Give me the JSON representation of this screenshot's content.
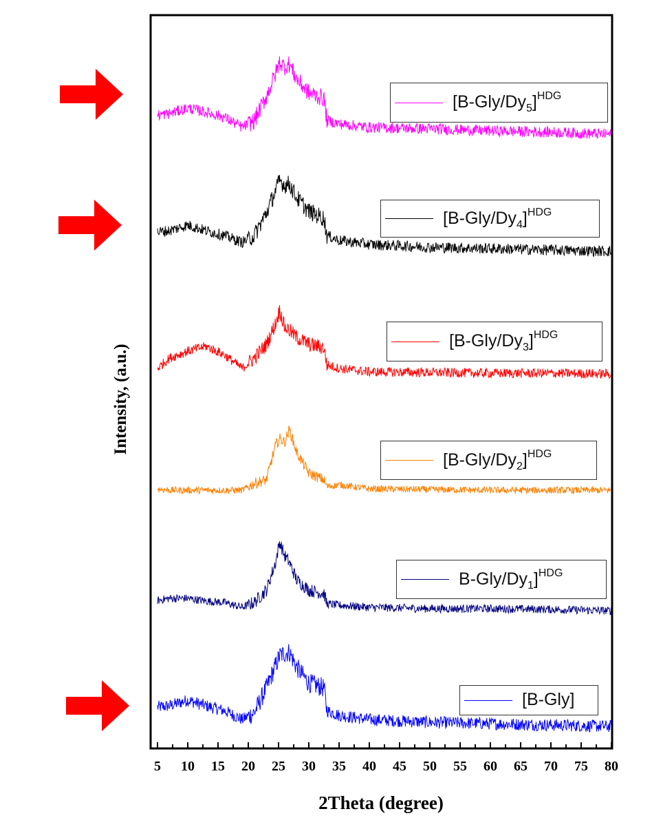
{
  "chart_data": {
    "type": "line",
    "title": "",
    "xlabel": "2Theta (degree)",
    "ylabel": "Intensity, (a.u.)",
    "xlim": [
      5,
      80
    ],
    "ylim": [
      0,
      1065
    ],
    "xticks": [
      "5",
      "10",
      "15",
      "20",
      "25",
      "30",
      "35",
      "40",
      "45",
      "50",
      "55",
      "60",
      "65",
      "70",
      "75",
      "80"
    ],
    "grid": false,
    "legend_placement": "right of each trace",
    "x": [
      5,
      7,
      10,
      13,
      16,
      19,
      21,
      23,
      24.5,
      25.2,
      26,
      26.8,
      28,
      30,
      32.5,
      33,
      35,
      40,
      50,
      60,
      70,
      80
    ],
    "series": [
      {
        "name": "[B-Gly]",
        "legend": {
          "prefix": "[B-Gly]",
          "sub": "",
          "suffix": "",
          "sup": ""
        },
        "color": "#0000ff",
        "offset": 0,
        "noise": 9,
        "values": [
          60,
          62,
          70,
          62,
          55,
          42,
          52,
          88,
          120,
          135,
          138,
          140,
          118,
          95,
          88,
          55,
          48,
          42,
          38,
          36,
          34,
          32
        ]
      },
      {
        "name": "B-Gly/Dy1]HDG",
        "legend": {
          "prefix": "B-Gly/Dy",
          "sub": "1",
          "suffix": "]",
          "sup": "HDG"
        },
        "color": "#000080",
        "offset": 170,
        "noise": 6,
        "values": [
          45,
          48,
          48,
          44,
          42,
          35,
          42,
          60,
          100,
          130,
          110,
          100,
          75,
          60,
          55,
          40,
          38,
          35,
          33,
          33,
          32,
          30
        ]
      },
      {
        "name": "[B-Gly/Dy2]HDG",
        "legend": {
          "prefix": "[B-Gly/Dy",
          "sub": "2",
          "suffix": "]",
          "sup": "HDG"
        },
        "color": "#ff8000",
        "offset": 345,
        "noise": 5,
        "values": [
          32,
          30,
          30,
          30,
          30,
          30,
          40,
          45,
          95,
          105,
          100,
          118,
          85,
          55,
          45,
          35,
          38,
          32,
          31,
          30,
          30,
          30
        ]
      },
      {
        "name": "[B-Gly/Dy3]HDG",
        "legend": {
          "prefix": "[B-Gly/Dy",
          "sub": "3",
          "suffix": "]",
          "sup": "HDG"
        },
        "color": "#ff0000",
        "offset": 512,
        "noise": 7,
        "values": [
          40,
          55,
          65,
          72,
          60,
          40,
          55,
          75,
          105,
          125,
          100,
          95,
          85,
          75,
          70,
          45,
          40,
          35,
          34,
          33,
          33,
          32
        ]
      },
      {
        "name": "[B-Gly/Dy4]HDG",
        "legend": {
          "prefix": "[B-Gly/Dy",
          "sub": "4",
          "suffix": "]",
          "sup": "HDG"
        },
        "color": "#000000",
        "offset": 690,
        "noise": 8,
        "values": [
          60,
          62,
          70,
          62,
          55,
          45,
          55,
          88,
          120,
          135,
          128,
          130,
          110,
          90,
          80,
          55,
          48,
          42,
          38,
          36,
          34,
          32
        ]
      },
      {
        "name": "[B-Gly/Dy5]HDG",
        "legend": {
          "prefix": "[B-Gly/Dy",
          "sub": "5",
          "suffix": "]",
          "sup": "HDG"
        },
        "color": "#ff00ff",
        "offset": 862,
        "noise": 8,
        "values": [
          58,
          60,
          68,
          62,
          55,
          40,
          50,
          85,
          118,
          135,
          128,
          132,
          110,
          90,
          82,
          50,
          45,
          40,
          38,
          35,
          33,
          30
        ]
      }
    ],
    "annotations": [
      {
        "type": "arrow",
        "color": "#ff0000",
        "target": "[B-Gly/Dy5]HDG"
      },
      {
        "type": "arrow",
        "color": "#ff0000",
        "target": "[B-Gly/Dy4]HDG"
      },
      {
        "type": "arrow",
        "color": "#ff0000",
        "target": "[B-Gly]"
      }
    ]
  }
}
